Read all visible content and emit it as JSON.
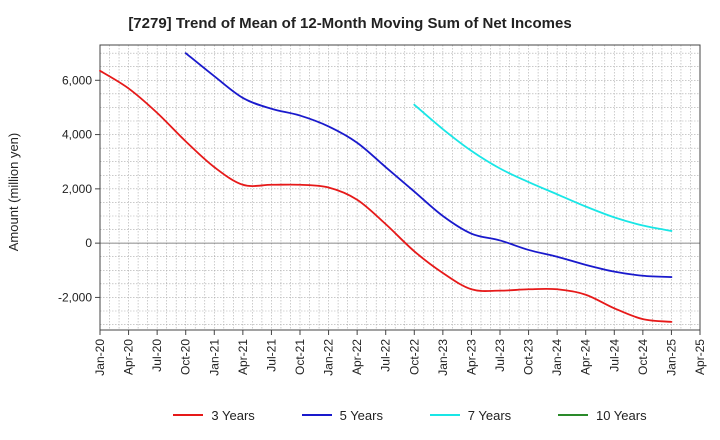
{
  "chart_data": {
    "type": "line",
    "title": "[7279]  Trend of Mean of 12-Month Moving Sum of Net Incomes",
    "xlabel": "",
    "ylabel": "Amount (million yen)",
    "ylim": [
      -3200,
      7300
    ],
    "yticks": [
      -2000,
      0,
      2000,
      4000,
      6000
    ],
    "ytick_labels": [
      "-2,000",
      "0",
      "2,000",
      "4,000",
      "6,000"
    ],
    "xticks": [
      "Jan-20",
      "Apr-20",
      "Jul-20",
      "Oct-20",
      "Jan-21",
      "Apr-21",
      "Jul-21",
      "Oct-21",
      "Jan-22",
      "Apr-22",
      "Jul-22",
      "Oct-22",
      "Jan-23",
      "Apr-23",
      "Jul-23",
      "Oct-23",
      "Jan-24",
      "Apr-24",
      "Jul-24",
      "Oct-24",
      "Jan-25",
      "Apr-25"
    ],
    "grid": true,
    "legend_position": "bottom",
    "series": [
      {
        "name": "3 Years",
        "color": "#e61919",
        "points": [
          [
            "Jan-20",
            6350
          ],
          [
            "Apr-20",
            5700
          ],
          [
            "Jul-20",
            4800
          ],
          [
            "Oct-20",
            3750
          ],
          [
            "Jan-21",
            2800
          ],
          [
            "Apr-21",
            2150
          ],
          [
            "Jul-21",
            2150
          ],
          [
            "Oct-21",
            2150
          ],
          [
            "Jan-22",
            2050
          ],
          [
            "Apr-22",
            1600
          ],
          [
            "Jul-22",
            700
          ],
          [
            "Oct-22",
            -300
          ],
          [
            "Jan-23",
            -1100
          ],
          [
            "Apr-23",
            -1700
          ],
          [
            "Jul-23",
            -1750
          ],
          [
            "Oct-23",
            -1700
          ],
          [
            "Jan-24",
            -1700
          ],
          [
            "Apr-24",
            -1900
          ],
          [
            "Jul-24",
            -2400
          ],
          [
            "Oct-24",
            -2800
          ],
          [
            "Jan-25",
            -2900
          ]
        ]
      },
      {
        "name": "5 Years",
        "color": "#1919cc",
        "points": [
          [
            "Oct-20",
            7000
          ],
          [
            "Jan-21",
            6150
          ],
          [
            "Apr-21",
            5350
          ],
          [
            "Jul-21",
            4950
          ],
          [
            "Oct-21",
            4700
          ],
          [
            "Jan-22",
            4300
          ],
          [
            "Apr-22",
            3700
          ],
          [
            "Jul-22",
            2800
          ],
          [
            "Oct-22",
            1900
          ],
          [
            "Jan-23",
            1000
          ],
          [
            "Apr-23",
            350
          ],
          [
            "Jul-23",
            100
          ],
          [
            "Oct-23",
            -250
          ],
          [
            "Jan-24",
            -500
          ],
          [
            "Apr-24",
            -800
          ],
          [
            "Jul-24",
            -1050
          ],
          [
            "Oct-24",
            -1200
          ],
          [
            "Jan-25",
            -1250
          ]
        ]
      },
      {
        "name": "7 Years",
        "color": "#19e6e6",
        "points": [
          [
            "Oct-22",
            5100
          ],
          [
            "Jan-23",
            4200
          ],
          [
            "Apr-23",
            3400
          ],
          [
            "Jul-23",
            2750
          ],
          [
            "Oct-23",
            2250
          ],
          [
            "Jan-24",
            1800
          ],
          [
            "Apr-24",
            1350
          ],
          [
            "Jul-24",
            950
          ],
          [
            "Oct-24",
            650
          ],
          [
            "Jan-25",
            450
          ]
        ]
      },
      {
        "name": "10 Years",
        "color": "#2a8a2a",
        "points": []
      }
    ]
  }
}
